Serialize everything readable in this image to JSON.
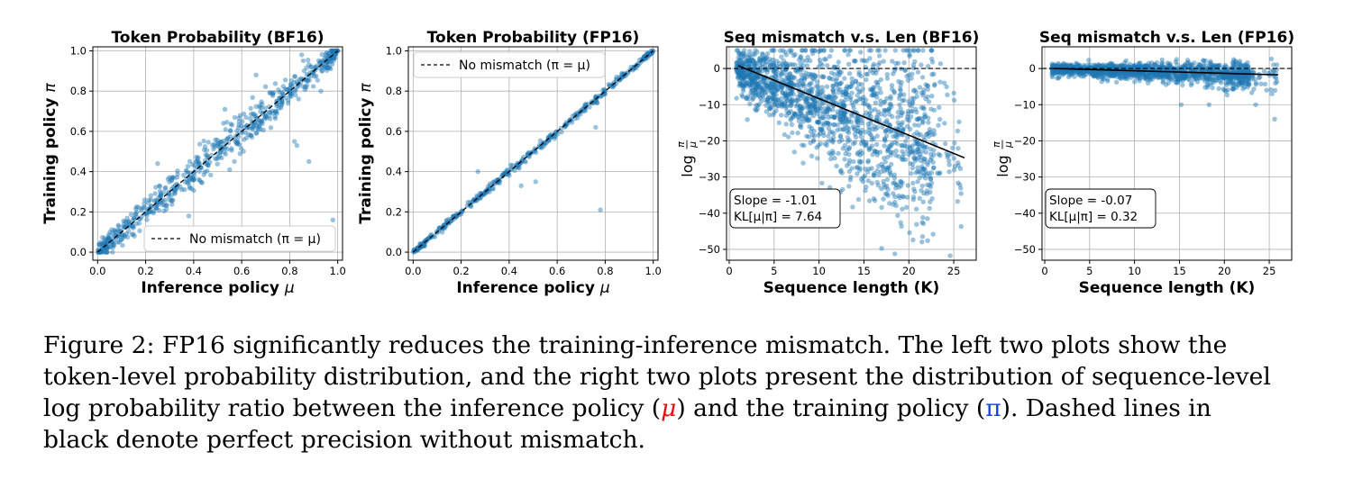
{
  "chart_data": [
    {
      "type": "scatter",
      "title": "Token Probability (BF16)",
      "xlabel": "Inference policy μ",
      "ylabel": "Training policy π",
      "xlim": [
        -0.02,
        1.02
      ],
      "ylim": [
        -0.04,
        1.02
      ],
      "xticks": [
        "0.0",
        "0.2",
        "0.4",
        "0.6",
        "0.8",
        "1.0"
      ],
      "yticks": [
        "0.0",
        "0.2",
        "0.4",
        "0.6",
        "0.8",
        "1.0"
      ],
      "xtick_values": [
        0,
        0.2,
        0.4,
        0.6,
        0.8,
        1.0
      ],
      "ytick_values": [
        0,
        0.2,
        0.4,
        0.6,
        0.8,
        1.0
      ],
      "grid": true,
      "legend": {
        "label": "No mismatch (π = μ)",
        "position": "lower-right"
      },
      "reference_line": {
        "style": "dashed",
        "x": [
          0,
          1
        ],
        "y": [
          0,
          1
        ]
      },
      "series_name": "tokens",
      "spread": 0.035,
      "outliers": [
        [
          0.82,
          0.55
        ],
        [
          0.83,
          0.53
        ],
        [
          0.88,
          0.45
        ],
        [
          0.98,
          0.16
        ],
        [
          0.55,
          0.41
        ],
        [
          0.57,
          0.45
        ],
        [
          0.66,
          0.88
        ],
        [
          0.53,
          0.71
        ],
        [
          0.25,
          0.44
        ],
        [
          0.38,
          0.18
        ],
        [
          0.31,
          0.37
        ],
        [
          0.85,
          0.98
        ],
        [
          0.93,
          0.8
        ],
        [
          0.12,
          0.15
        ]
      ],
      "n_points": 650
    },
    {
      "type": "scatter",
      "title": "Token Probability (FP16)",
      "xlabel": "Inference policy μ",
      "ylabel": "Training policy π",
      "xlim": [
        -0.02,
        1.02
      ],
      "ylim": [
        -0.04,
        1.02
      ],
      "xticks": [
        "0.0",
        "0.2",
        "0.4",
        "0.6",
        "0.8",
        "1.0"
      ],
      "yticks": [
        "0.0",
        "0.2",
        "0.4",
        "0.6",
        "0.8",
        "1.0"
      ],
      "xtick_values": [
        0,
        0.2,
        0.4,
        0.6,
        0.8,
        1.0
      ],
      "ytick_values": [
        0,
        0.2,
        0.4,
        0.6,
        0.8,
        1.0
      ],
      "grid": true,
      "legend": {
        "label": "No mismatch (π = μ)",
        "position": "upper-left"
      },
      "reference_line": {
        "style": "dashed",
        "x": [
          0,
          1
        ],
        "y": [
          0,
          1
        ]
      },
      "series_name": "tokens",
      "spread": 0.008,
      "outliers": [
        [
          0.78,
          0.21
        ],
        [
          0.51,
          0.35
        ],
        [
          0.27,
          0.4
        ],
        [
          0.76,
          0.62
        ],
        [
          0.45,
          0.33
        ],
        [
          0.57,
          0.58
        ]
      ],
      "n_points": 420
    },
    {
      "type": "scatter",
      "title": "Seq mismatch v.s. Len (BF16)",
      "xlabel": "Sequence length (K)",
      "ylabel": "log π/μ",
      "ylabel_parts": {
        "prefix": "log",
        "num": "π",
        "den": "μ"
      },
      "xlim": [
        -0.3,
        27.5
      ],
      "ylim": [
        -53,
        6
      ],
      "xticks": [
        "0",
        "5",
        "10",
        "15",
        "20",
        "25"
      ],
      "yticks": [
        "0",
        "−10",
        "−20",
        "−30",
        "−40",
        "−50"
      ],
      "xtick_values": [
        0,
        5,
        10,
        15,
        20,
        25
      ],
      "ytick_values": [
        0,
        -10,
        -20,
        -30,
        -40,
        -50
      ],
      "grid": true,
      "zero_line": {
        "style": "dashed",
        "y": 0
      },
      "fit_line": {
        "slope": -1.01,
        "x": [
          1,
          26.2
        ],
        "y": [
          0.8,
          -24.7
        ]
      },
      "stats": {
        "slope_text": "Slope = -1.01",
        "kl_text": "KL[μ|π] = 7.64"
      },
      "gen": {
        "slope": -1.01,
        "intercept": 1.0,
        "noise_base": 2.0,
        "noise_grow": 0.5,
        "cap": 5
      },
      "n_points": 1600
    },
    {
      "type": "scatter",
      "title": "Seq mismatch v.s. Len (FP16)",
      "xlabel": "Sequence length (K)",
      "ylabel": "log π/μ",
      "ylabel_parts": {
        "prefix": "log",
        "num": "π",
        "den": "μ"
      },
      "xlim": [
        -0.3,
        27.5
      ],
      "ylim": [
        -53,
        6
      ],
      "xticks": [
        "0",
        "5",
        "10",
        "15",
        "20",
        "25"
      ],
      "yticks": [
        "0",
        "−10",
        "−20",
        "−30",
        "−40",
        "−50"
      ],
      "xtick_values": [
        0,
        5,
        10,
        15,
        20,
        25
      ],
      "ytick_values": [
        0,
        -10,
        -20,
        -30,
        -40,
        -50
      ],
      "grid": true,
      "zero_line": {
        "style": "dashed",
        "y": 0
      },
      "fit_line": {
        "slope": -0.07,
        "x": [
          1,
          26.0
        ],
        "y": [
          0.0,
          -1.75
        ]
      },
      "stats": {
        "slope_text": "Slope = -0.07",
        "kl_text": "KL[μ|π] = 0.32"
      },
      "gen": {
        "slope": -0.07,
        "intercept": 0.0,
        "noise_base": 0.6,
        "noise_grow": 0.05,
        "cap": 3
      },
      "extra_outliers": [
        [
          23.5,
          -10
        ],
        [
          25.3,
          -7
        ],
        [
          25.6,
          -14
        ],
        [
          15.2,
          -10
        ],
        [
          18.3,
          -10
        ],
        [
          11.5,
          -4
        ],
        [
          22.0,
          -4
        ]
      ],
      "n_points": 1400
    }
  ],
  "caption": {
    "line1": "Figure 2: FP16 significantly reduces the training-inference mismatch. The left two plots show the",
    "line2": "token-level probability distribution, and the right two plots present the distribution of sequence-level",
    "line3_a": "log probability ratio between the inference policy (",
    "mu": "μ",
    "line3_b": ") and the training policy (",
    "pi": "π",
    "line3_c": "). Dashed lines in",
    "line4": "black denote perfect precision without mismatch."
  },
  "colors": {
    "points": "#1f77b4",
    "grid": "#b0b0b0",
    "mu": "#e01010",
    "pi": "#1a3ee8"
  }
}
